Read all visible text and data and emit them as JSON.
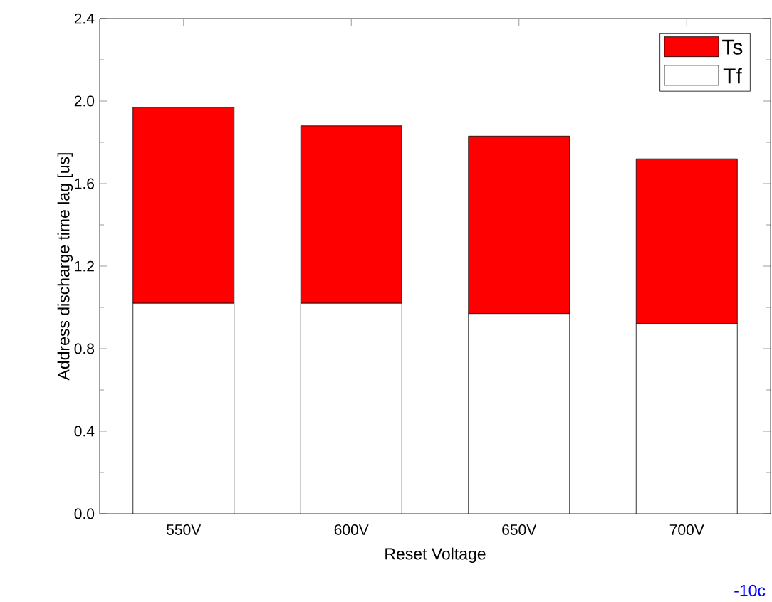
{
  "chart_data": {
    "type": "bar",
    "stacked": true,
    "xlabel": "Reset Voltage",
    "ylabel": "Address discharge time lag [us]",
    "categories": [
      "550V",
      "600V",
      "650V",
      "700V"
    ],
    "series": [
      {
        "name": "Tf",
        "color": "#ffffff",
        "values": [
          1.02,
          1.02,
          0.97,
          0.92
        ]
      },
      {
        "name": "Ts",
        "color": "#ff0000",
        "values": [
          0.95,
          0.86,
          0.86,
          0.8
        ]
      }
    ],
    "ylim": [
      0,
      2.4
    ],
    "yticks": [
      {
        "value": 0,
        "label": "0.0"
      },
      {
        "value": 0.4,
        "label": "0.4"
      },
      {
        "value": 0.8,
        "label": "0.8"
      },
      {
        "value": 1.2,
        "label": "1.2"
      },
      {
        "value": 1.6,
        "label": "1.6"
      },
      {
        "value": 2.0,
        "label": "2.0"
      },
      {
        "value": 2.4,
        "label": "2.4"
      }
    ],
    "legend": "top right",
    "grid": false,
    "annotations": [
      "-10c"
    ]
  }
}
